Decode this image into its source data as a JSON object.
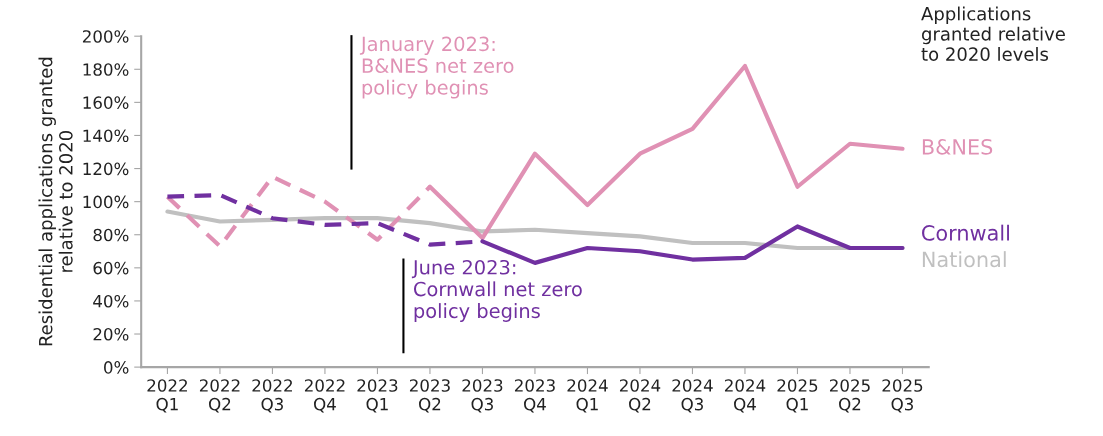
{
  "chart_data": {
    "type": "line",
    "ylabel": "Residential applications granted\nrelative to 2020",
    "categories": [
      "2022\nQ1",
      "2022\nQ2",
      "2022\nQ3",
      "2022\nQ4",
      "2023\nQ1",
      "2023\nQ2",
      "2023\nQ3",
      "2023\nQ4",
      "2024\nQ1",
      "2024\nQ2",
      "2024\nQ3",
      "2024\nQ4",
      "2025\nQ1",
      "2025\nQ2",
      "2025\nQ3"
    ],
    "series": [
      {
        "name": "National",
        "color": "#c0c0c0",
        "line_style": "solid",
        "values": [
          94,
          88,
          89,
          90,
          90,
          87,
          82,
          83,
          81,
          79,
          75,
          75,
          72,
          72,
          72
        ]
      },
      {
        "color": "#e091b4",
        "line_style": "dashed",
        "values": [
          103,
          73,
          115,
          100,
          77,
          109,
          null,
          null,
          null,
          null,
          null,
          null,
          null,
          null,
          null
        ]
      },
      {
        "name": "B&NES",
        "color": "#e091b4",
        "line_style": "solid",
        "values": [
          null,
          null,
          null,
          null,
          null,
          109,
          78,
          129,
          98,
          129,
          144,
          182,
          109,
          135,
          132
        ]
      },
      {
        "color": "#7030a0",
        "line_style": "dashed",
        "values": [
          103,
          104,
          90,
          86,
          87,
          74,
          76,
          null,
          null,
          null,
          null,
          null,
          null,
          null,
          null
        ]
      },
      {
        "name": "Cornwall",
        "color": "#7030a0",
        "line_style": "solid",
        "values": [
          null,
          null,
          null,
          null,
          null,
          null,
          76,
          63,
          72,
          70,
          65,
          66,
          85,
          72,
          72
        ]
      }
    ],
    "ylim": [
      0,
      200
    ],
    "yticks": [
      {
        "value": 0,
        "label": "0%"
      },
      {
        "value": 20,
        "label": "20%"
      },
      {
        "value": 40,
        "label": "40%"
      },
      {
        "value": 60,
        "label": "60%"
      },
      {
        "value": 80,
        "label": "80%"
      },
      {
        "value": 100,
        "label": "100%"
      },
      {
        "value": 120,
        "label": "120%"
      },
      {
        "value": 140,
        "label": "140%"
      },
      {
        "value": 160,
        "label": "160%"
      },
      {
        "value": 180,
        "label": "180%"
      },
      {
        "value": 200,
        "label": "200%"
      }
    ],
    "grid": false,
    "legend": false,
    "marker": "none",
    "annotations": [
      "January 2023:\nB&NES net zero\npolicy begins",
      "June 2023:\nCornwall net zero\npolicy begins",
      "Applications\ngranted relative\nto 2020 levels"
    ]
  }
}
